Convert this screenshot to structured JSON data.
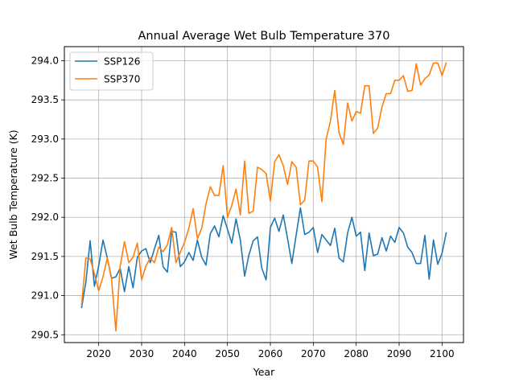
{
  "chart_data": {
    "type": "line",
    "title": "Annual Average Wet Bulb Temperature 370",
    "xlabel": "Year",
    "ylabel": "Wet Bulb Temperature (K)",
    "xlim": [
      2012,
      2105
    ],
    "ylim": [
      290.4,
      294.18
    ],
    "xticks": [
      2020,
      2030,
      2040,
      2050,
      2060,
      2070,
      2080,
      2090,
      2100
    ],
    "yticks": [
      290.5,
      291.0,
      291.5,
      292.0,
      292.5,
      293.0,
      293.5,
      294.0
    ],
    "grid": true,
    "legend": "top-left",
    "x": [
      2016,
      2017,
      2018,
      2019,
      2020,
      2021,
      2022,
      2023,
      2024,
      2025,
      2026,
      2027,
      2028,
      2029,
      2030,
      2031,
      2032,
      2033,
      2034,
      2035,
      2036,
      2037,
      2038,
      2039,
      2040,
      2041,
      2042,
      2043,
      2044,
      2045,
      2046,
      2047,
      2048,
      2049,
      2050,
      2051,
      2052,
      2053,
      2054,
      2055,
      2056,
      2057,
      2058,
      2059,
      2060,
      2061,
      2062,
      2063,
      2064,
      2065,
      2066,
      2067,
      2068,
      2069,
      2070,
      2071,
      2072,
      2073,
      2074,
      2075,
      2076,
      2077,
      2078,
      2079,
      2080,
      2081,
      2082,
      2083,
      2084,
      2085,
      2086,
      2087,
      2088,
      2089,
      2090,
      2091,
      2092,
      2093,
      2094,
      2095,
      2096,
      2097,
      2098,
      2099,
      2100,
      2101
    ],
    "series": [
      {
        "name": "SSP126",
        "color": "#1f77b4",
        "values": [
          290.84,
          291.17,
          291.7,
          291.12,
          291.38,
          291.71,
          291.48,
          291.22,
          291.24,
          291.35,
          291.05,
          291.37,
          291.1,
          291.49,
          291.57,
          291.6,
          291.42,
          291.6,
          291.77,
          291.37,
          291.3,
          291.82,
          291.81,
          291.37,
          291.43,
          291.55,
          291.45,
          291.71,
          291.49,
          291.39,
          291.79,
          291.89,
          291.75,
          292.02,
          291.85,
          291.67,
          291.98,
          291.71,
          291.25,
          291.52,
          291.7,
          291.75,
          291.35,
          291.2,
          291.87,
          291.99,
          291.82,
          292.03,
          291.73,
          291.41,
          291.77,
          292.12,
          291.78,
          291.81,
          291.87,
          291.55,
          291.78,
          291.71,
          291.64,
          291.86,
          291.48,
          291.43,
          291.8,
          292.0,
          291.76,
          291.81,
          291.32,
          291.8,
          291.51,
          291.53,
          291.74,
          291.57,
          291.76,
          291.68,
          291.87,
          291.8,
          291.62,
          291.55,
          291.41,
          291.41,
          291.77,
          291.21,
          291.71,
          291.4,
          291.54,
          291.81
        ]
      },
      {
        "name": "SSP370",
        "color": "#ff7f0e",
        "values": [
          290.87,
          291.48,
          291.47,
          291.28,
          291.06,
          291.24,
          291.48,
          291.21,
          290.55,
          291.37,
          291.69,
          291.42,
          291.49,
          291.67,
          291.2,
          291.38,
          291.48,
          291.42,
          291.62,
          291.56,
          291.65,
          291.87,
          291.42,
          291.55,
          291.68,
          291.86,
          292.11,
          291.73,
          291.86,
          292.17,
          292.39,
          292.28,
          292.28,
          292.66,
          292.0,
          292.15,
          292.36,
          292.03,
          292.72,
          292.05,
          292.08,
          292.64,
          292.61,
          292.56,
          292.21,
          292.71,
          292.8,
          292.66,
          292.42,
          292.71,
          292.64,
          292.16,
          292.22,
          292.72,
          292.72,
          292.64,
          292.2,
          293.0,
          293.23,
          293.62,
          293.08,
          292.93,
          293.46,
          293.23,
          293.35,
          293.33,
          293.68,
          293.68,
          293.07,
          293.14,
          293.41,
          293.58,
          293.58,
          293.75,
          293.75,
          293.81,
          293.61,
          293.62,
          293.96,
          293.69,
          293.77,
          293.82,
          293.97,
          293.97,
          293.81,
          293.98
        ]
      }
    ]
  }
}
